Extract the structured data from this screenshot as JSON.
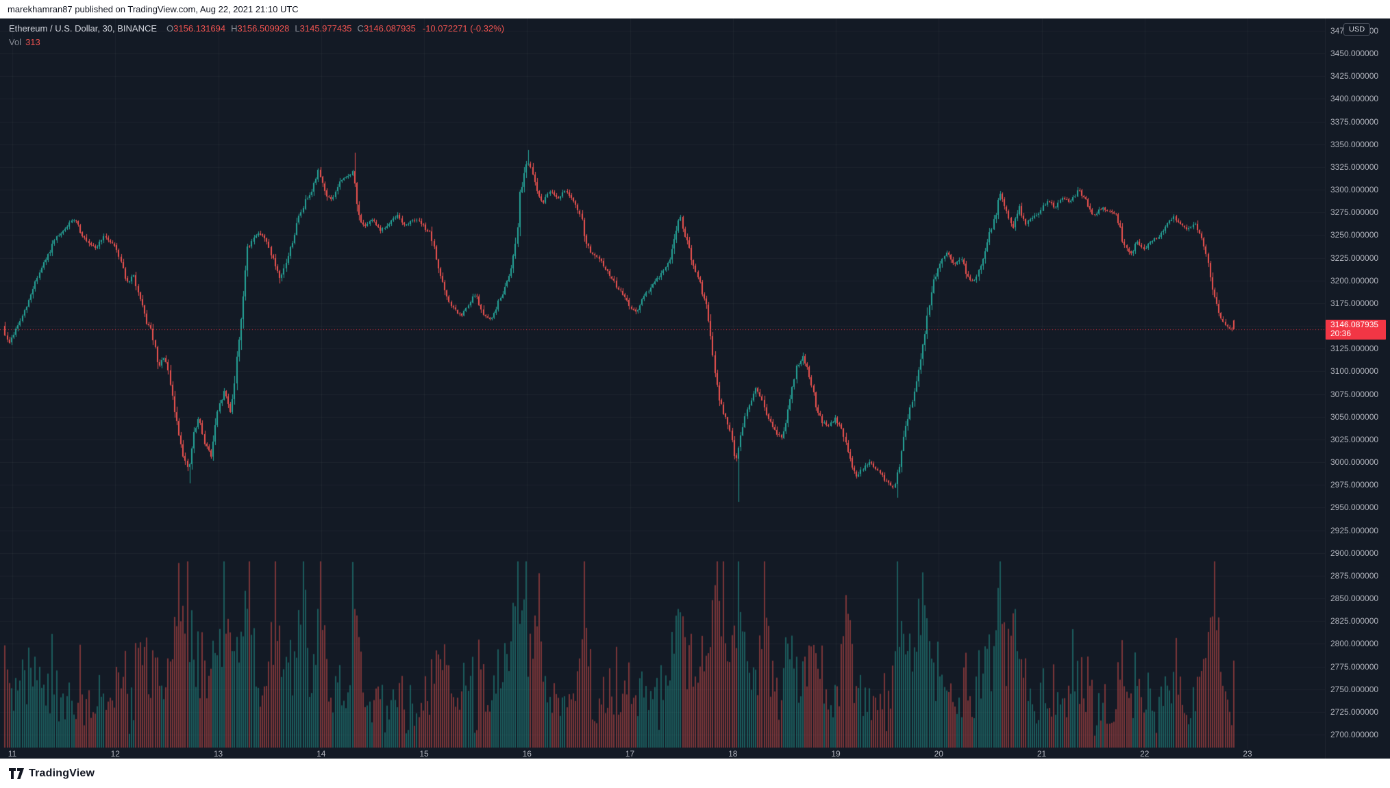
{
  "top_bar": {
    "text": "marekhamran87 published on TradingView.com, Aug 22, 2021 21:10 UTC"
  },
  "legend": {
    "title": "Ethereum / U.S. Dollar, 30, BINANCE",
    "ohlc": [
      {
        "label": "O",
        "value": "3156.131694"
      },
      {
        "label": "H",
        "value": "3156.509928"
      },
      {
        "label": "L",
        "value": "3145.977435"
      },
      {
        "label": "C",
        "value": "3146.087935"
      }
    ],
    "change": "-10.072271 (-0.32%)",
    "vol_label": "Vol",
    "vol_value": "313"
  },
  "price_axis": {
    "currency": "USD",
    "top_partial_label": "3475.000000",
    "labels": [
      "3450.000000",
      "3425.000000",
      "3400.000000",
      "3375.000000",
      "3350.000000",
      "3325.000000",
      "3300.000000",
      "3275.000000",
      "3250.000000",
      "3225.000000",
      "3200.000000",
      "3175.000000",
      "3150.000000",
      "3125.000000",
      "3100.000000",
      "3075.000000",
      "3050.000000",
      "3025.000000",
      "3000.000000",
      "2975.000000",
      "2950.000000",
      "2925.000000",
      "2900.000000",
      "2875.000000",
      "2850.000000",
      "2825.000000",
      "2800.000000",
      "2775.000000",
      "2750.000000",
      "2725.000000",
      "2700.000000"
    ],
    "last_price": "3146.087935",
    "countdown": "20:36"
  },
  "time_axis": {
    "labels": [
      "11",
      "12",
      "13",
      "14",
      "15",
      "16",
      "17",
      "18",
      "19",
      "20",
      "21",
      "22",
      "23"
    ]
  },
  "footer": {
    "brand": "TradingView"
  },
  "chart_data": {
    "type": "candlestick",
    "title": "Ethereum / U.S. Dollar, 30, BINANCE",
    "symbol": "ETHUSD",
    "exchange": "BINANCE",
    "interval_minutes": 30,
    "x_unit": "day of Aug 2021",
    "x_range": [
      10.93,
      23.04
    ],
    "visible_price_range": [
      2684,
      3488
    ],
    "y_tick_step": 25,
    "y_tick_range": [
      2700,
      3450
    ],
    "grid": true,
    "volume_axis": "unlabeled",
    "volume_last": 313,
    "ohlc_last": {
      "o": 3156.131694,
      "h": 3156.509928,
      "l": 3145.977435,
      "c": 3146.087935
    },
    "price_path": [
      [
        10.93,
        3150
      ],
      [
        10.98,
        3130
      ],
      [
        11.04,
        3142
      ],
      [
        11.1,
        3156
      ],
      [
        11.17,
        3174
      ],
      [
        11.24,
        3198
      ],
      [
        11.3,
        3212
      ],
      [
        11.37,
        3228
      ],
      [
        11.44,
        3246
      ],
      [
        11.5,
        3252
      ],
      [
        11.57,
        3262
      ],
      [
        11.63,
        3268
      ],
      [
        11.7,
        3250
      ],
      [
        11.77,
        3238
      ],
      [
        11.84,
        3236
      ],
      [
        11.9,
        3248
      ],
      [
        11.96,
        3244
      ],
      [
        12.02,
        3238
      ],
      [
        12.08,
        3220
      ],
      [
        12.14,
        3196
      ],
      [
        12.2,
        3206
      ],
      [
        12.26,
        3178
      ],
      [
        12.32,
        3156
      ],
      [
        12.38,
        3142
      ],
      [
        12.44,
        3102
      ],
      [
        12.5,
        3118
      ],
      [
        12.56,
        3080
      ],
      [
        12.62,
        3042
      ],
      [
        12.68,
        3010
      ],
      [
        12.73,
        2988
      ],
      [
        12.78,
        3028
      ],
      [
        12.83,
        3048
      ],
      [
        12.89,
        3022
      ],
      [
        12.95,
        3006
      ],
      [
        13.02,
        3058
      ],
      [
        13.08,
        3078
      ],
      [
        13.14,
        3056
      ],
      [
        13.19,
        3098
      ],
      [
        13.25,
        3170
      ],
      [
        13.3,
        3230
      ],
      [
        13.37,
        3250
      ],
      [
        13.44,
        3252
      ],
      [
        13.5,
        3240
      ],
      [
        13.56,
        3222
      ],
      [
        13.62,
        3198
      ],
      [
        13.68,
        3220
      ],
      [
        13.74,
        3242
      ],
      [
        13.8,
        3268
      ],
      [
        13.87,
        3288
      ],
      [
        13.94,
        3302
      ],
      [
        14.0,
        3322
      ],
      [
        14.06,
        3296
      ],
      [
        14.12,
        3288
      ],
      [
        14.2,
        3308
      ],
      [
        14.27,
        3314
      ],
      [
        14.33,
        3320
      ],
      [
        14.38,
        3272
      ],
      [
        14.45,
        3258
      ],
      [
        14.52,
        3268
      ],
      [
        14.6,
        3255
      ],
      [
        14.68,
        3262
      ],
      [
        14.76,
        3272
      ],
      [
        14.84,
        3260
      ],
      [
        14.92,
        3268
      ],
      [
        15.0,
        3262
      ],
      [
        15.08,
        3252
      ],
      [
        15.16,
        3214
      ],
      [
        15.24,
        3180
      ],
      [
        15.3,
        3170
      ],
      [
        15.38,
        3160
      ],
      [
        15.45,
        3172
      ],
      [
        15.52,
        3186
      ],
      [
        15.6,
        3160
      ],
      [
        15.68,
        3158
      ],
      [
        15.76,
        3180
      ],
      [
        15.84,
        3204
      ],
      [
        15.9,
        3232
      ],
      [
        15.96,
        3300
      ],
      [
        16.02,
        3334
      ],
      [
        16.08,
        3314
      ],
      [
        16.13,
        3294
      ],
      [
        16.18,
        3286
      ],
      [
        16.25,
        3300
      ],
      [
        16.32,
        3290
      ],
      [
        16.4,
        3300
      ],
      [
        16.47,
        3286
      ],
      [
        16.54,
        3272
      ],
      [
        16.6,
        3240
      ],
      [
        16.66,
        3228
      ],
      [
        16.73,
        3222
      ],
      [
        16.8,
        3210
      ],
      [
        16.88,
        3196
      ],
      [
        16.95,
        3184
      ],
      [
        17.02,
        3172
      ],
      [
        17.08,
        3164
      ],
      [
        17.16,
        3182
      ],
      [
        17.24,
        3196
      ],
      [
        17.32,
        3206
      ],
      [
        17.4,
        3220
      ],
      [
        17.46,
        3252
      ],
      [
        17.51,
        3270
      ],
      [
        17.56,
        3248
      ],
      [
        17.62,
        3222
      ],
      [
        17.7,
        3195
      ],
      [
        17.77,
        3170
      ],
      [
        17.82,
        3120
      ],
      [
        17.88,
        3072
      ],
      [
        17.94,
        3052
      ],
      [
        18.0,
        3030
      ],
      [
        18.05,
        3002
      ],
      [
        18.1,
        3032
      ],
      [
        18.17,
        3062
      ],
      [
        18.24,
        3080
      ],
      [
        18.3,
        3070
      ],
      [
        18.36,
        3048
      ],
      [
        18.43,
        3035
      ],
      [
        18.5,
        3025
      ],
      [
        18.56,
        3062
      ],
      [
        18.63,
        3100
      ],
      [
        18.7,
        3118
      ],
      [
        18.76,
        3098
      ],
      [
        18.82,
        3065
      ],
      [
        18.88,
        3045
      ],
      [
        18.95,
        3040
      ],
      [
        19.02,
        3048
      ],
      [
        19.08,
        3035
      ],
      [
        19.15,
        3005
      ],
      [
        19.22,
        2985
      ],
      [
        19.28,
        2992
      ],
      [
        19.35,
        3000
      ],
      [
        19.42,
        2992
      ],
      [
        19.5,
        2980
      ],
      [
        19.58,
        2972
      ],
      [
        19.64,
        2995
      ],
      [
        19.7,
        3040
      ],
      [
        19.77,
        3072
      ],
      [
        19.83,
        3105
      ],
      [
        19.9,
        3155
      ],
      [
        19.97,
        3198
      ],
      [
        20.04,
        3222
      ],
      [
        20.1,
        3232
      ],
      [
        20.17,
        3216
      ],
      [
        20.24,
        3226
      ],
      [
        20.3,
        3202
      ],
      [
        20.37,
        3200
      ],
      [
        20.44,
        3222
      ],
      [
        20.5,
        3245
      ],
      [
        20.57,
        3272
      ],
      [
        20.62,
        3296
      ],
      [
        20.68,
        3275
      ],
      [
        20.74,
        3258
      ],
      [
        20.8,
        3282
      ],
      [
        20.86,
        3262
      ],
      [
        20.93,
        3270
      ],
      [
        21.0,
        3276
      ],
      [
        21.08,
        3288
      ],
      [
        21.15,
        3280
      ],
      [
        21.22,
        3292
      ],
      [
        21.3,
        3286
      ],
      [
        21.38,
        3300
      ],
      [
        21.45,
        3288
      ],
      [
        21.52,
        3270
      ],
      [
        21.6,
        3280
      ],
      [
        21.68,
        3276
      ],
      [
        21.75,
        3272
      ],
      [
        21.82,
        3240
      ],
      [
        21.88,
        3228
      ],
      [
        21.95,
        3242
      ],
      [
        22.02,
        3234
      ],
      [
        22.08,
        3242
      ],
      [
        22.15,
        3248
      ],
      [
        22.22,
        3258
      ],
      [
        22.3,
        3270
      ],
      [
        22.37,
        3262
      ],
      [
        22.44,
        3256
      ],
      [
        22.5,
        3264
      ],
      [
        22.56,
        3252
      ],
      [
        22.62,
        3230
      ],
      [
        22.68,
        3190
      ],
      [
        22.74,
        3164
      ],
      [
        22.8,
        3152
      ],
      [
        22.86,
        3146.1
      ]
    ],
    "long_wicks": [
      [
        12.73,
        2977
      ],
      [
        14.33,
        3341
      ],
      [
        16.02,
        3344
      ],
      [
        18.05,
        2956
      ],
      [
        19.6,
        2961
      ]
    ],
    "volume_spikes": [
      [
        12.62,
        0.55
      ],
      [
        12.7,
        0.62
      ],
      [
        13.06,
        0.5
      ],
      [
        13.3,
        0.9
      ],
      [
        13.55,
        0.5
      ],
      [
        13.83,
        0.95
      ],
      [
        14.0,
        0.55
      ],
      [
        14.3,
        0.6
      ],
      [
        15.9,
        0.5
      ],
      [
        16.0,
        0.85
      ],
      [
        16.12,
        0.55
      ],
      [
        16.55,
        0.5
      ],
      [
        17.5,
        0.42
      ],
      [
        17.84,
        1.0
      ],
      [
        17.9,
        0.6
      ],
      [
        18.06,
        0.55
      ],
      [
        18.3,
        0.68
      ],
      [
        19.1,
        0.45
      ],
      [
        19.6,
        0.48
      ],
      [
        19.84,
        0.55
      ],
      [
        20.6,
        0.8
      ],
      [
        20.72,
        0.45
      ],
      [
        21.3,
        0.35
      ],
      [
        22.3,
        0.33
      ],
      [
        22.68,
        0.7
      ]
    ],
    "colors": {
      "up": "#26a69a",
      "down": "#ef5350",
      "volume_up": "rgba(38,166,154,0.48)",
      "volume_down": "rgba(239,83,80,0.48)",
      "last_price": "#f23645",
      "background": "#131a25"
    }
  }
}
